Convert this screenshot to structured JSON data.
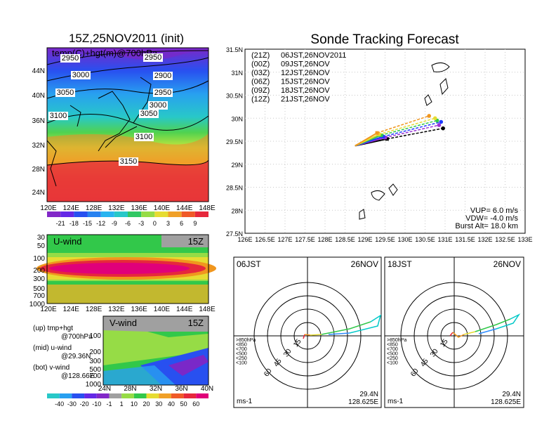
{
  "panels": {
    "map_title": "15Z,25NOV2011 (init)",
    "map_label": "temp(C)+hgt(m)@700hPa",
    "track_title": "Sonde Tracking Forecast",
    "u_label": "U-wind",
    "u_time": "15Z",
    "v_label": "V-wind",
    "v_time": "15Z"
  },
  "colors": {
    "purple": "#9b32d6",
    "blue_dark": "#1e3cff",
    "blue": "#2c8cff",
    "cyan": "#00c8c8",
    "green": "#32c84a",
    "lime": "#96dc46",
    "yellow": "#e6dc32",
    "orange": "#f0961e",
    "red": "#e6283c",
    "magenta": "#e0007a",
    "gray": "#a0a0a0"
  },
  "chart_data": [
    {
      "type": "heatmap",
      "name": "temp700",
      "x_ticks": [
        "120E",
        "124E",
        "128E",
        "132E",
        "136E",
        "140E",
        "144E",
        "148E"
      ],
      "y_ticks": [
        "24N",
        "28N",
        "32N",
        "36N",
        "40N",
        "44N"
      ],
      "colorbar_labels": [
        "-21",
        "-18",
        "-15",
        "-12",
        "-9",
        "-6",
        "-3",
        "0",
        "3",
        "6",
        "9"
      ],
      "contour_labels": [
        "2950",
        "2950",
        "3000",
        "2900",
        "2950",
        "3050",
        "3000",
        "3100",
        "3050",
        "3100",
        "3150"
      ]
    },
    {
      "type": "line",
      "name": "track",
      "x_ticks": [
        "126E",
        "126.5E",
        "127E",
        "127.5E",
        "128E",
        "128.5E",
        "129E",
        "129.5E",
        "130E",
        "130.5E",
        "131E",
        "131.5E",
        "132E",
        "132.5E",
        "133E"
      ],
      "y_ticks": [
        "27.5N",
        "28N",
        "28.5N",
        "29N",
        "29.5N",
        "30N",
        "30.5N",
        "31N",
        "31.5N"
      ],
      "xlim": [
        126,
        133
      ],
      "ylim": [
        27.5,
        31.5
      ],
      "start": [
        128.75,
        29.4
      ],
      "legend": [
        {
          "code": "(21Z)",
          "time": "06JST,26NOV2011",
          "color": "#000000"
        },
        {
          "code": "(00Z)",
          "time": "09JST,26NOV",
          "color": "#9b32d6"
        },
        {
          "code": "(03Z)",
          "time": "12JST,26NOV",
          "color": "#1e3cff"
        },
        {
          "code": "(06Z)",
          "time": "15JST,26NOV",
          "color": "#32c84a"
        },
        {
          "code": "(09Z)",
          "time": "18JST,26NOV",
          "color": "#e6dc32"
        },
        {
          "code": "(12Z)",
          "time": "21JST,26NOV",
          "color": "#f0961e"
        }
      ],
      "series": [
        {
          "color": "#000000",
          "end": [
            130.95,
            29.78
          ],
          "burst": [
            129.55,
            29.55
          ]
        },
        {
          "color": "#9b32d6",
          "end": [
            130.85,
            29.85
          ],
          "burst": [
            129.5,
            29.58
          ]
        },
        {
          "color": "#1e3cff",
          "end": [
            130.9,
            29.92
          ],
          "burst": [
            129.45,
            29.6
          ]
        },
        {
          "color": "#32c84a",
          "end": [
            130.8,
            29.95
          ],
          "burst": [
            129.4,
            29.63
          ]
        },
        {
          "color": "#e6dc32",
          "end": [
            130.75,
            30.0
          ],
          "burst": [
            129.35,
            29.65
          ]
        },
        {
          "color": "#f0961e",
          "end": [
            130.6,
            30.05
          ],
          "burst": [
            129.3,
            29.68
          ]
        }
      ],
      "info": [
        "VUP= 6.0 m/s",
        "VDW= -4.0 m/s",
        "Burst Alt= 18.0 km"
      ]
    },
    {
      "type": "heatmap",
      "name": "uwind",
      "x_ticks": [
        "120E",
        "124E",
        "128E",
        "132E",
        "136E",
        "140E",
        "144E",
        "148E"
      ],
      "y_ticks": [
        "30",
        "50",
        "100",
        "200",
        "300",
        "500",
        "700",
        "1000"
      ]
    },
    {
      "type": "heatmap",
      "name": "vwind",
      "x_ticks": [
        "24N",
        "28N",
        "32N",
        "36N",
        "40N"
      ],
      "y_ticks": [
        "100",
        "200",
        "300",
        "500",
        "700",
        "1000"
      ],
      "colorbar_labels": [
        "-40",
        "-30",
        "-20",
        "-10",
        "-1",
        "1",
        "10",
        "20",
        "30",
        "40",
        "50",
        "60"
      ]
    },
    {
      "type": "line",
      "name": "hodo06",
      "left_label": "06JST",
      "right_label": "26NOV",
      "ring_labels": [
        "15",
        "30",
        "45",
        "60"
      ],
      "levels": [
        ">850hPa",
        "<850",
        "<700",
        "<500",
        "<250",
        "<100"
      ],
      "unit": "ms-1",
      "lat": "29.4N",
      "lon": "128.625E"
    },
    {
      "type": "line",
      "name": "hodo18",
      "left_label": "18JST",
      "right_label": "26NOV",
      "ring_labels": [
        "15",
        "30",
        "45",
        "60"
      ],
      "levels": [
        ">850hPa",
        "<850",
        "<700",
        "<500",
        "<250",
        "<100"
      ],
      "unit": "ms-1",
      "lat": "29.4N",
      "lon": "128.625E"
    }
  ],
  "notes": [
    {
      "line1": "(up) tmp+hgt",
      "line2": "@700hPa"
    },
    {
      "line1": "(mid) u-wind",
      "line2": "@29.36N"
    },
    {
      "line1": "(bot) v-wind",
      "line2": "@128.66E"
    }
  ]
}
